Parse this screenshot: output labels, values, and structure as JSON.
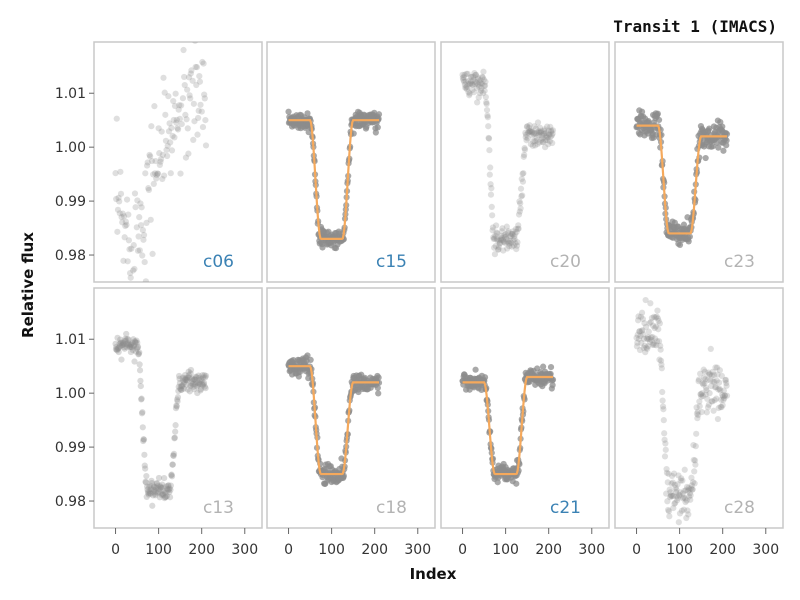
{
  "chart_data": {
    "type": "scatter",
    "title": "Transit 1 (IMACS)",
    "xlabel": "Index",
    "ylabel": "Relative flux",
    "xlim": [
      -50,
      340
    ],
    "ylim": [
      0.975,
      1.0195
    ],
    "x_ticks": [
      0,
      100,
      200,
      300
    ],
    "y_ticks": [
      0.98,
      0.99,
      1.0,
      1.01
    ],
    "y_tick_labels": [
      "0.98",
      "0.99",
      "1.00",
      "1.01"
    ],
    "grid": false,
    "colors": {
      "points": "#8c8c8c",
      "model": "#f5a95c",
      "label_active": "#3b82b4",
      "label_inactive": "#b3b3b3",
      "frame": "#c8c8c8"
    },
    "panels": [
      {
        "label": "c06",
        "label_active": true,
        "row": 0,
        "col": 0,
        "shape": "scatter_noisy",
        "model": false,
        "pre": 0.99,
        "in": 0.98,
        "post": 1.01,
        "noise": 0.006,
        "alpha": 0.28
      },
      {
        "label": "c15",
        "label_active": true,
        "row": 0,
        "col": 1,
        "shape": "transit",
        "model": true,
        "pre": 1.005,
        "in": 0.983,
        "post": 1.005,
        "noise": 0.0008,
        "alpha": 0.75
      },
      {
        "label": "c20",
        "label_active": false,
        "row": 0,
        "col": 2,
        "shape": "transit",
        "model": false,
        "pre": 1.012,
        "in": 0.983,
        "post": 1.002,
        "noise": 0.0012,
        "alpha": 0.28
      },
      {
        "label": "c23",
        "label_active": false,
        "row": 0,
        "col": 3,
        "shape": "transit",
        "model": true,
        "pre": 1.004,
        "in": 0.984,
        "post": 1.002,
        "noise": 0.0012,
        "alpha": 0.75
      },
      {
        "label": "c13",
        "label_active": false,
        "row": 1,
        "col": 0,
        "shape": "transit",
        "model": false,
        "pre": 1.009,
        "in": 0.982,
        "post": 1.002,
        "noise": 0.0009,
        "alpha": 0.32
      },
      {
        "label": "c18",
        "label_active": false,
        "row": 1,
        "col": 1,
        "shape": "transit",
        "model": true,
        "pre": 1.005,
        "in": 0.985,
        "post": 1.002,
        "noise": 0.0009,
        "alpha": 0.75
      },
      {
        "label": "c21",
        "label_active": true,
        "row": 1,
        "col": 2,
        "shape": "transit",
        "model": true,
        "pre": 1.002,
        "in": 0.985,
        "post": 1.003,
        "noise": 0.0008,
        "alpha": 0.75
      },
      {
        "label": "c28",
        "label_active": false,
        "row": 1,
        "col": 3,
        "shape": "transit",
        "model": false,
        "pre": 1.011,
        "in": 0.981,
        "post": 1.001,
        "noise": 0.0025,
        "alpha": 0.28
      }
    ]
  }
}
